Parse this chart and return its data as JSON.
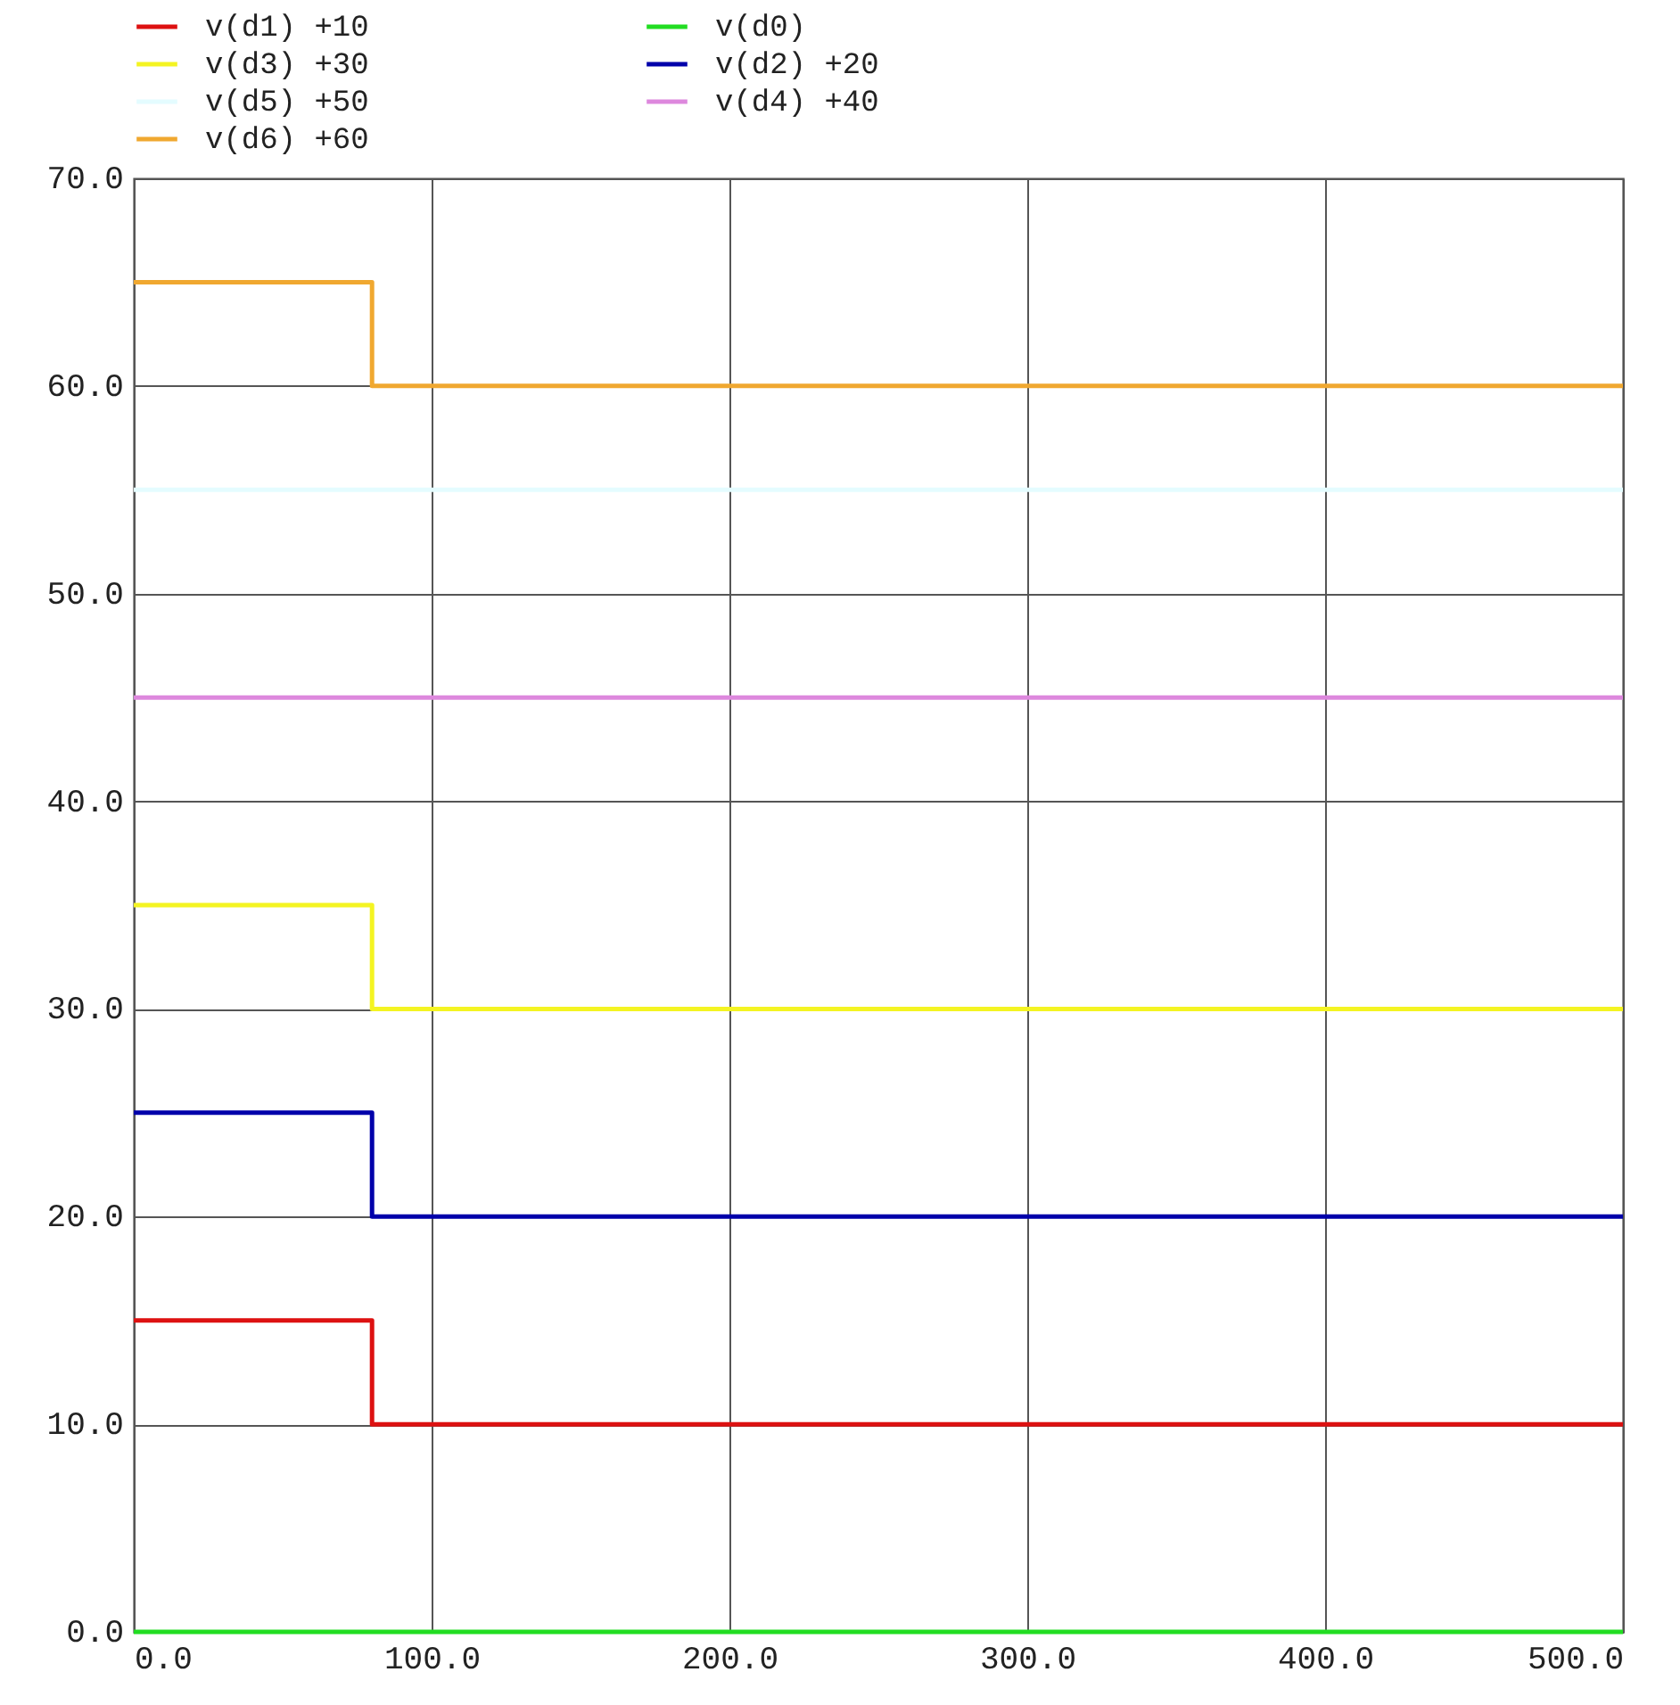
{
  "chart_data": {
    "type": "step",
    "legend": "top left",
    "grid": true,
    "line_style": "solid",
    "xlim": [
      0,
      500
    ],
    "ylim": [
      0,
      70
    ],
    "xticks": [
      {
        "value": 0,
        "label": "0.0"
      },
      {
        "value": 100,
        "label": "100.0"
      },
      {
        "value": 200,
        "label": "200.0"
      },
      {
        "value": 300,
        "label": "300.0"
      },
      {
        "value": 400,
        "label": "400.0"
      },
      {
        "value": 500,
        "label": "500.0"
      }
    ],
    "yticks": [
      {
        "value": 0,
        "label": "0.0"
      },
      {
        "value": 10,
        "label": "10.0"
      },
      {
        "value": 20,
        "label": "20.0"
      },
      {
        "value": 30,
        "label": "30.0"
      },
      {
        "value": 40,
        "label": "40.0"
      },
      {
        "value": 50,
        "label": "50.0"
      },
      {
        "value": 60,
        "label": "60.0"
      },
      {
        "value": 70,
        "label": "70.0"
      }
    ],
    "series": [
      {
        "name": "v(d1) +10",
        "color": "#dd1111",
        "x": [
          0,
          80,
          500
        ],
        "values": [
          15,
          10,
          10
        ]
      },
      {
        "name": "v(d0)",
        "color": "#22dd22",
        "x": [
          0,
          500
        ],
        "values": [
          0,
          0
        ]
      },
      {
        "name": "v(d3) +30",
        "color": "#f4f422",
        "x": [
          0,
          80,
          500
        ],
        "values": [
          35,
          30,
          30
        ]
      },
      {
        "name": "v(d2) +20",
        "color": "#0000aa",
        "x": [
          0,
          80,
          500
        ],
        "values": [
          25,
          20,
          20
        ]
      },
      {
        "name": "v(d5) +50",
        "color": "#e4fcff",
        "x": [
          0,
          500
        ],
        "values": [
          55,
          55
        ]
      },
      {
        "name": "v(d4) +40",
        "color": "#dd88dd",
        "x": [
          0,
          500
        ],
        "values": [
          45,
          45
        ]
      },
      {
        "name": "v(d6) +60",
        "color": "#f0a830",
        "x": [
          0,
          80,
          500
        ],
        "values": [
          65,
          60,
          60
        ]
      }
    ]
  }
}
